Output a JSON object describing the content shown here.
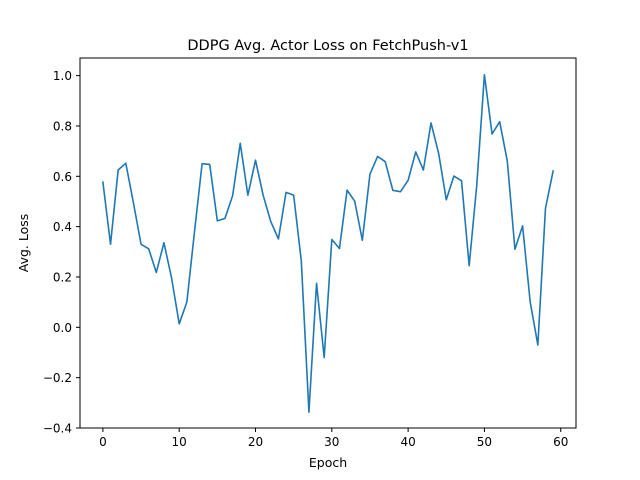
{
  "chart_data": {
    "type": "line",
    "title": "DDPG Avg. Actor Loss on FetchPush-v1",
    "xlabel": "Epoch",
    "ylabel": "Avg. Loss",
    "xlim": [
      -3,
      62
    ],
    "ylim": [
      -0.4,
      1.07
    ],
    "xticks": [
      0,
      10,
      20,
      30,
      40,
      50,
      60
    ],
    "yticks": [
      -0.4,
      -0.2,
      0.0,
      0.2,
      0.4,
      0.6,
      0.8,
      1.0
    ],
    "xtick_labels": [
      "0",
      "10",
      "20",
      "30",
      "40",
      "50",
      "60"
    ],
    "ytick_labels": [
      "−0.4",
      "−0.2",
      "0.0",
      "0.2",
      "0.4",
      "0.6",
      "0.8",
      "1.0"
    ],
    "grid": false,
    "colors": {
      "line": "#1f77b4"
    },
    "series": [
      {
        "x": [
          0,
          1,
          2,
          3,
          4,
          5,
          6,
          7,
          8,
          9,
          10,
          11,
          12,
          13,
          14,
          15,
          16,
          17,
          18,
          19,
          20,
          21,
          22,
          23,
          24,
          25,
          26,
          27,
          28,
          29,
          30,
          31,
          32,
          33,
          34,
          35,
          36,
          37,
          38,
          39,
          40,
          41,
          42,
          43,
          44,
          45,
          46,
          47,
          48,
          49,
          50,
          51,
          52,
          53,
          54,
          55,
          56,
          57,
          58,
          59
        ],
        "values": [
          0.577,
          0.33,
          0.625,
          0.652,
          0.495,
          0.33,
          0.312,
          0.218,
          0.336,
          0.196,
          0.014,
          0.1,
          0.378,
          0.65,
          0.647,
          0.423,
          0.433,
          0.523,
          0.731,
          0.525,
          0.664,
          0.525,
          0.42,
          0.351,
          0.536,
          0.525,
          0.264,
          -0.337,
          0.175,
          -0.12,
          0.349,
          0.313,
          0.545,
          0.501,
          0.346,
          0.609,
          0.679,
          0.658,
          0.544,
          0.539,
          0.584,
          0.697,
          0.625,
          0.812,
          0.691,
          0.507,
          0.601,
          0.582,
          0.245,
          0.567,
          1.003,
          0.768,
          0.817,
          0.66,
          0.31,
          0.403,
          0.1,
          -0.07,
          0.473,
          0.621
        ]
      }
    ]
  }
}
